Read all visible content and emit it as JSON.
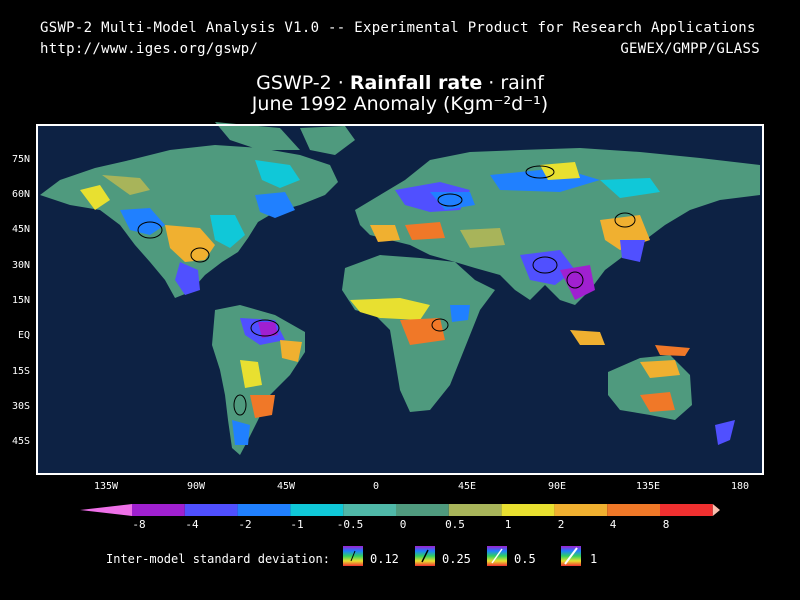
{
  "header": {
    "line1": "GSWP-2 Multi-Model Analysis V1.0 -- Experimental Product for Research Applications",
    "url": "http://www.iges.org/gswp/",
    "credit": "GEWEX/GMPP/GLASS"
  },
  "title": {
    "prefix": "GSWP-2 · ",
    "variable": "Rainfall rate",
    "suffix": " · rainf",
    "line2": "June 1992 Anomaly (Kgm⁻²d⁻¹)"
  },
  "map": {
    "lat_labels": [
      "75N",
      "60N",
      "45N",
      "30N",
      "15N",
      "EQ",
      "15S",
      "30S",
      "45S"
    ],
    "lon_labels": [
      "135W",
      "90W",
      "45W",
      "0",
      "45E",
      "90E",
      "135E",
      "180"
    ],
    "colors": {
      "ocean": "#0d2244",
      "land_neutral": "#4f9a7e",
      "frame": "#ffffff"
    }
  },
  "colorbar": {
    "labels": [
      "-8",
      "-4",
      "-2",
      "-1",
      "-0.5",
      "0",
      "0.5",
      "1",
      "2",
      "4",
      "8"
    ],
    "colors": [
      "#ee70e8",
      "#a020d0",
      "#5050ff",
      "#2080ff",
      "#10c8d8",
      "#4fb8a8",
      "#4f9a7e",
      "#a8b45a",
      "#e8e030",
      "#f0b030",
      "#f07828",
      "#f03030",
      "#f8c0b0"
    ]
  },
  "stddev": {
    "label": "Inter-model standard deviation:",
    "values": [
      "0.12",
      "0.25",
      "0.5",
      "1"
    ]
  }
}
